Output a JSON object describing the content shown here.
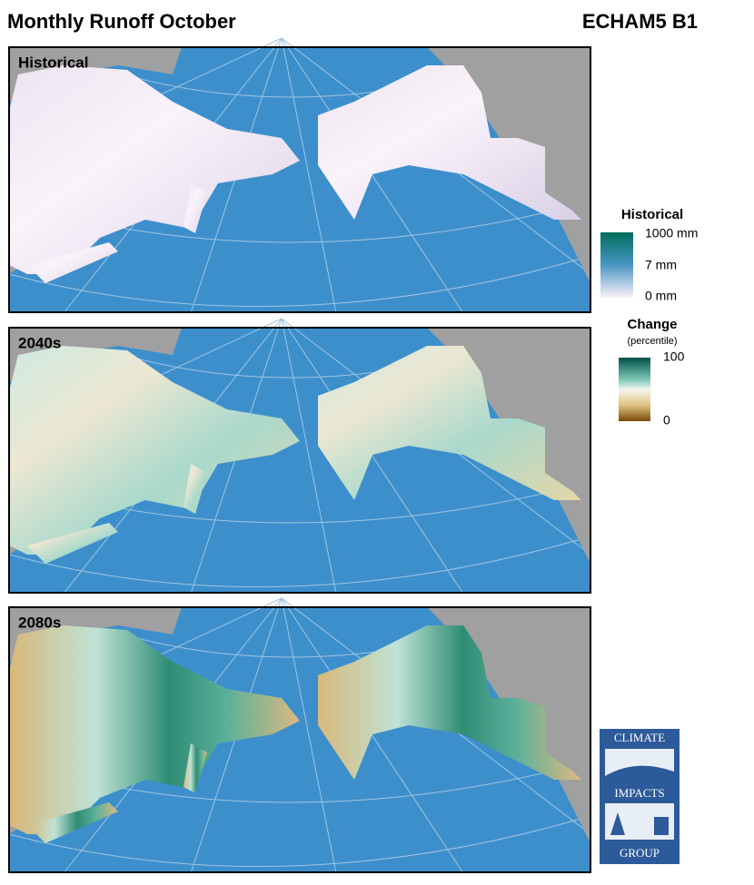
{
  "header": {
    "title": "Monthly Runoff October",
    "model": "ECHAM5 B1"
  },
  "panels": [
    {
      "label": "Historical"
    },
    {
      "label": "2040s"
    },
    {
      "label": "2080s"
    }
  ],
  "legends": {
    "historical": {
      "title": "Historical",
      "ticks": [
        "1000 mm",
        "7 mm",
        "0 mm"
      ]
    },
    "change": {
      "title": "Change",
      "subtitle": "(percentile)",
      "ticks": [
        "100",
        "0"
      ]
    }
  },
  "logo": {
    "top": "CLIMATE",
    "middle": "IMPACTS",
    "bottom": "GROUP"
  }
}
